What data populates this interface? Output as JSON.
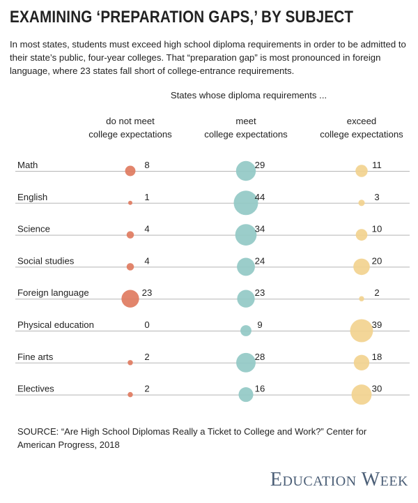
{
  "title": "EXAMINING ‘PREPARATION GAPS,’ BY SUBJECT",
  "subtitle": "In most states, students must exceed high school diploma requirements in order to be admitted to their state’s public, four-year colleges. That “preparation gap” is most pronounced in foreign language, where 23 states fall short of college-entrance requirements.",
  "source": "SOURCE: “Are High School Diplomas Really a Ticket to College and Work?” Center for American Progress, 2018",
  "brand": "Education Week",
  "chart_data": {
    "type": "bubble-table",
    "supertitle": "States whose diploma requirements ...",
    "categories": [
      "Math",
      "English",
      "Science",
      "Social studies",
      "Foreign language",
      "Physical education",
      "Fine arts",
      "Electives"
    ],
    "series": [
      {
        "name_line1": "do not meet",
        "name_line2": "college expectations",
        "color": "#e07b5f",
        "values": [
          8,
          1,
          4,
          4,
          23,
          0,
          2,
          2
        ]
      },
      {
        "name_line1": "meet",
        "name_line2": "college expectations",
        "color": "#93c9c6",
        "values": [
          29,
          44,
          34,
          24,
          23,
          9,
          28,
          16
        ]
      },
      {
        "name_line1": "exceed",
        "name_line2": "college expectations",
        "color": "#f2d28f",
        "values": [
          11,
          3,
          10,
          20,
          2,
          39,
          18,
          30
        ]
      }
    ],
    "unit": "states",
    "max_value": 44
  }
}
